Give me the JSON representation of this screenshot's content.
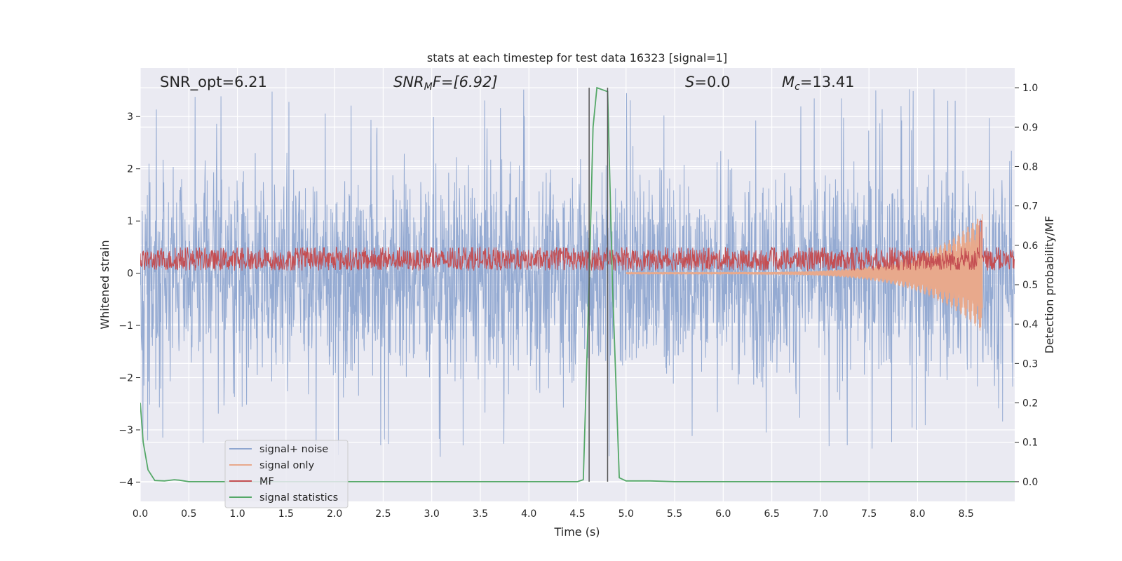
{
  "chart_data": {
    "type": "line",
    "title": "stats at each timestep for test data 16323 [signal=1]",
    "xlabel": "Time (s)",
    "ylabel_left": "Whitened strain",
    "ylabel_right": "Detection probability/MF",
    "xlim": [
      0,
      9
    ],
    "ylim_left": [
      -4.37,
      3.93
    ],
    "ylim_right": [
      -0.05,
      1.05
    ],
    "x_ticks": [
      "0.0",
      "0.5",
      "1.0",
      "1.5",
      "2.0",
      "2.5",
      "3.0",
      "3.5",
      "4.0",
      "4.5",
      "5.0",
      "5.5",
      "6.0",
      "6.5",
      "7.0",
      "7.5",
      "8.0",
      "8.5"
    ],
    "x_tick_values": [
      0,
      0.5,
      1,
      1.5,
      2,
      2.5,
      3,
      3.5,
      4,
      4.5,
      5,
      5.5,
      6,
      6.5,
      7,
      7.5,
      8,
      8.5
    ],
    "y_left_ticks": [
      "−4",
      "−3",
      "−2",
      "−1",
      "0",
      "1",
      "2",
      "3"
    ],
    "y_left_tick_values": [
      -4,
      -3,
      -2,
      -1,
      0,
      1,
      2,
      3
    ],
    "y_right_ticks": [
      "0.0",
      "0.1",
      "0.2",
      "0.3",
      "0.4",
      "0.5",
      "0.6",
      "0.7",
      "0.8",
      "0.9",
      "1.0"
    ],
    "y_right_tick_values": [
      0,
      0.1,
      0.2,
      0.3,
      0.4,
      0.5,
      0.6,
      0.7,
      0.8,
      0.9,
      1.0
    ],
    "grid": true,
    "legend_position": "lower-left",
    "annotations": {
      "snr_opt": "SNR_opt=6.21",
      "snr_mf_main": "SNR",
      "snr_mf_sub": "M",
      "snr_mf_rest": "F=[6.92]",
      "s_var": "S",
      "s_rest": "=0.0",
      "mc_var": "M",
      "mc_sub": "c",
      "mc_rest": "=13.41"
    },
    "vertical_lines": [
      4.62,
      4.81
    ],
    "series": [
      {
        "name": "signal+ noise",
        "color": "#8fa6d0",
        "axis": "left",
        "kind": "noise",
        "x_range": [
          0,
          9
        ],
        "envelope_amplitude": 1.85,
        "peak_amplitude": 3.55
      },
      {
        "name": "signal only",
        "color": "#e8a98c",
        "axis": "left",
        "kind": "chirp",
        "x_range": [
          5.0,
          8.67
        ],
        "amplitude_start": 0.02,
        "amplitude_end": 1.15
      },
      {
        "name": "MF",
        "color": "#c44e52",
        "axis": "left",
        "kind": "band",
        "x_range": [
          0,
          9
        ],
        "band": [
          0.0,
          0.5
        ],
        "spike": {
          "x": 8.65,
          "y": 1.0
        }
      },
      {
        "name": "signal statistics",
        "color": "#55a868",
        "axis": "right",
        "kind": "line",
        "x": [
          0.0,
          0.03,
          0.08,
          0.15,
          0.25,
          0.35,
          0.4,
          0.45,
          0.5,
          4.5,
          4.56,
          4.62,
          4.66,
          4.7,
          4.81,
          4.86,
          4.93,
          5.0,
          5.25,
          5.5,
          9.0
        ],
        "y": [
          0.2,
          0.1,
          0.03,
          0.003,
          0.002,
          0.005,
          0.004,
          0.002,
          0.0,
          0.0,
          0.005,
          0.5,
          0.9,
          1.0,
          0.99,
          0.5,
          0.01,
          0.002,
          0.002,
          0.0,
          0.0
        ]
      }
    ]
  }
}
